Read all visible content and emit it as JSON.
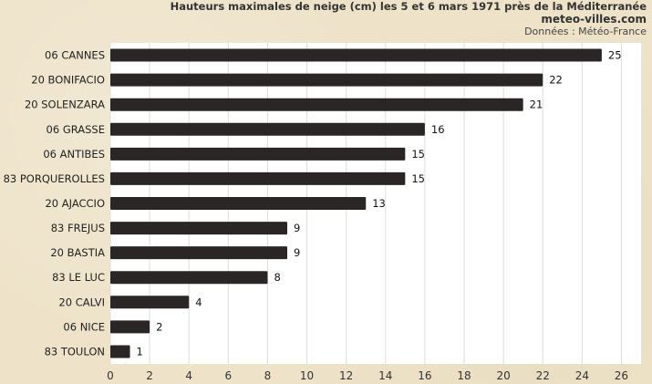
{
  "header": {
    "title": "Hauteurs maximales de neige (cm) les 5 et 6 mars 1971 près de la Méditerranée",
    "site": "meteo-villes.com",
    "source": "Données : Météo-France"
  },
  "colors": {
    "bar": "#2a2626",
    "plot_bg": "#ffffff",
    "grid": "#dcdcdc",
    "page_bg": "#eee3c9"
  },
  "chart_data": {
    "type": "bar",
    "orientation": "horizontal",
    "title": "Hauteurs maximales de neige (cm) les 5 et 6 mars 1971 près de la Méditerranée",
    "xlabel": "",
    "ylabel": "",
    "categories": [
      "06 CANNES",
      "20 BONIFACIO",
      "20 SOLENZARA",
      "06 GRASSE",
      "06 ANTIBES",
      "83 PORQUEROLLES",
      "20 AJACCIO",
      "83 FREJUS",
      "20 BASTIA",
      "83 LE LUC",
      "20 CALVI",
      "06 NICE",
      "83 TOULON"
    ],
    "values": [
      25,
      22,
      21,
      16,
      15,
      15,
      13,
      9,
      9,
      8,
      4,
      2,
      1
    ],
    "xlim": [
      0,
      27
    ],
    "xticks": [
      0,
      2,
      4,
      6,
      8,
      10,
      12,
      14,
      16,
      18,
      20,
      22,
      24,
      26
    ],
    "grid": true,
    "data_labels": true
  }
}
